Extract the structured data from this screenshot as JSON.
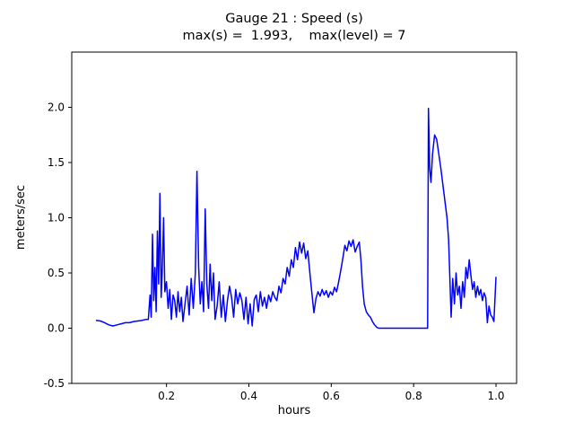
{
  "figure": {
    "background": "#ffffff",
    "text_color": "#000000"
  },
  "chart_data": {
    "type": "line",
    "title": "Gauge 21 : Speed (s)",
    "subtitle": "max(s) =  1.993,    max(level) = 7",
    "xlabel": "hours",
    "ylabel": "meters/sec",
    "xlim": [
      -0.03,
      1.05
    ],
    "ylim": [
      -0.5,
      2.5
    ],
    "x_ticks": [
      0.2,
      0.4,
      0.6,
      0.8,
      1.0
    ],
    "x_tick_labels": [
      "0.2",
      "0.4",
      "0.6",
      "0.8",
      "1.0"
    ],
    "y_ticks": [
      -0.5,
      0.0,
      0.5,
      1.0,
      1.5,
      2.0
    ],
    "y_tick_labels": [
      "-0.5",
      "0.0",
      "0.5",
      "1.0",
      "1.5",
      "2.0"
    ],
    "grid": false,
    "legend": null,
    "max_s": 1.993,
    "max_level": 7,
    "series": [
      {
        "name": "speed",
        "color": "#0000ff",
        "line_width": 1.5,
        "points": [
          [
            0.03,
            0.07
          ],
          [
            0.04,
            0.065
          ],
          [
            0.05,
            0.05
          ],
          [
            0.06,
            0.03
          ],
          [
            0.07,
            0.02
          ],
          [
            0.08,
            0.03
          ],
          [
            0.09,
            0.04
          ],
          [
            0.1,
            0.05
          ],
          [
            0.11,
            0.05
          ],
          [
            0.12,
            0.06
          ],
          [
            0.13,
            0.065
          ],
          [
            0.14,
            0.07
          ],
          [
            0.15,
            0.08
          ],
          [
            0.156,
            0.08
          ],
          [
            0.16,
            0.3
          ],
          [
            0.163,
            0.1
          ],
          [
            0.166,
            0.85
          ],
          [
            0.169,
            0.25
          ],
          [
            0.172,
            0.55
          ],
          [
            0.175,
            0.15
          ],
          [
            0.178,
            0.88
          ],
          [
            0.181,
            0.4
          ],
          [
            0.184,
            1.22
          ],
          [
            0.187,
            0.28
          ],
          [
            0.19,
            0.55
          ],
          [
            0.193,
            1.0
          ],
          [
            0.196,
            0.33
          ],
          [
            0.2,
            0.42
          ],
          [
            0.204,
            0.18
          ],
          [
            0.208,
            0.35
          ],
          [
            0.212,
            0.08
          ],
          [
            0.216,
            0.3
          ],
          [
            0.22,
            0.25
          ],
          [
            0.224,
            0.1
          ],
          [
            0.228,
            0.33
          ],
          [
            0.232,
            0.15
          ],
          [
            0.236,
            0.28
          ],
          [
            0.24,
            0.06
          ],
          [
            0.245,
            0.22
          ],
          [
            0.25,
            0.38
          ],
          [
            0.255,
            0.12
          ],
          [
            0.26,
            0.45
          ],
          [
            0.265,
            0.18
          ],
          [
            0.27,
            0.5
          ],
          [
            0.274,
            1.42
          ],
          [
            0.278,
            0.55
          ],
          [
            0.282,
            0.22
          ],
          [
            0.286,
            0.42
          ],
          [
            0.29,
            0.15
          ],
          [
            0.294,
            1.08
          ],
          [
            0.298,
            0.4
          ],
          [
            0.302,
            0.18
          ],
          [
            0.306,
            0.58
          ],
          [
            0.31,
            0.25
          ],
          [
            0.314,
            0.5
          ],
          [
            0.318,
            0.08
          ],
          [
            0.323,
            0.2
          ],
          [
            0.328,
            0.42
          ],
          [
            0.333,
            0.1
          ],
          [
            0.338,
            0.3
          ],
          [
            0.343,
            0.06
          ],
          [
            0.348,
            0.25
          ],
          [
            0.353,
            0.38
          ],
          [
            0.358,
            0.28
          ],
          [
            0.363,
            0.1
          ],
          [
            0.368,
            0.35
          ],
          [
            0.373,
            0.22
          ],
          [
            0.378,
            0.32
          ],
          [
            0.383,
            0.25
          ],
          [
            0.388,
            0.08
          ],
          [
            0.393,
            0.28
          ],
          [
            0.398,
            0.04
          ],
          [
            0.403,
            0.22
          ],
          [
            0.408,
            0.02
          ],
          [
            0.413,
            0.26
          ],
          [
            0.418,
            0.3
          ],
          [
            0.423,
            0.15
          ],
          [
            0.428,
            0.33
          ],
          [
            0.433,
            0.2
          ],
          [
            0.438,
            0.28
          ],
          [
            0.443,
            0.18
          ],
          [
            0.448,
            0.3
          ],
          [
            0.453,
            0.24
          ],
          [
            0.458,
            0.33
          ],
          [
            0.463,
            0.28
          ],
          [
            0.468,
            0.25
          ],
          [
            0.473,
            0.38
          ],
          [
            0.478,
            0.32
          ],
          [
            0.483,
            0.45
          ],
          [
            0.488,
            0.4
          ],
          [
            0.493,
            0.55
          ],
          [
            0.498,
            0.47
          ],
          [
            0.503,
            0.62
          ],
          [
            0.508,
            0.55
          ],
          [
            0.513,
            0.73
          ],
          [
            0.518,
            0.62
          ],
          [
            0.523,
            0.78
          ],
          [
            0.528,
            0.68
          ],
          [
            0.533,
            0.77
          ],
          [
            0.538,
            0.63
          ],
          [
            0.543,
            0.7
          ],
          [
            0.548,
            0.5
          ],
          [
            0.553,
            0.32
          ],
          [
            0.558,
            0.14
          ],
          [
            0.563,
            0.27
          ],
          [
            0.568,
            0.33
          ],
          [
            0.573,
            0.29
          ],
          [
            0.578,
            0.35
          ],
          [
            0.583,
            0.3
          ],
          [
            0.588,
            0.34
          ],
          [
            0.593,
            0.28
          ],
          [
            0.598,
            0.33
          ],
          [
            0.603,
            0.3
          ],
          [
            0.608,
            0.37
          ],
          [
            0.613,
            0.33
          ],
          [
            0.618,
            0.42
          ],
          [
            0.623,
            0.52
          ],
          [
            0.628,
            0.63
          ],
          [
            0.633,
            0.75
          ],
          [
            0.638,
            0.7
          ],
          [
            0.643,
            0.79
          ],
          [
            0.648,
            0.74
          ],
          [
            0.653,
            0.8
          ],
          [
            0.658,
            0.69
          ],
          [
            0.663,
            0.74
          ],
          [
            0.668,
            0.78
          ],
          [
            0.672,
            0.62
          ],
          [
            0.676,
            0.38
          ],
          [
            0.68,
            0.22
          ],
          [
            0.685,
            0.15
          ],
          [
            0.69,
            0.12
          ],
          [
            0.695,
            0.1
          ],
          [
            0.7,
            0.06
          ],
          [
            0.705,
            0.03
          ],
          [
            0.71,
            0.01
          ],
          [
            0.715,
            0.0
          ],
          [
            0.74,
            0.0
          ],
          [
            0.77,
            0.0
          ],
          [
            0.8,
            0.0
          ],
          [
            0.83,
            0.0
          ],
          [
            0.834,
            0.0
          ],
          [
            0.836,
            1.99
          ],
          [
            0.839,
            1.45
          ],
          [
            0.842,
            1.32
          ],
          [
            0.846,
            1.58
          ],
          [
            0.851,
            1.75
          ],
          [
            0.856,
            1.71
          ],
          [
            0.861,
            1.58
          ],
          [
            0.866,
            1.45
          ],
          [
            0.871,
            1.3
          ],
          [
            0.876,
            1.15
          ],
          [
            0.881,
            1.0
          ],
          [
            0.885,
            0.8
          ],
          [
            0.888,
            0.45
          ],
          [
            0.891,
            0.1
          ],
          [
            0.895,
            0.45
          ],
          [
            0.899,
            0.22
          ],
          [
            0.903,
            0.5
          ],
          [
            0.907,
            0.3
          ],
          [
            0.911,
            0.38
          ],
          [
            0.915,
            0.18
          ],
          [
            0.919,
            0.42
          ],
          [
            0.923,
            0.28
          ],
          [
            0.927,
            0.55
          ],
          [
            0.931,
            0.45
          ],
          [
            0.935,
            0.62
          ],
          [
            0.939,
            0.48
          ],
          [
            0.943,
            0.35
          ],
          [
            0.947,
            0.42
          ],
          [
            0.951,
            0.28
          ],
          [
            0.955,
            0.38
          ],
          [
            0.959,
            0.3
          ],
          [
            0.963,
            0.35
          ],
          [
            0.967,
            0.25
          ],
          [
            0.971,
            0.32
          ],
          [
            0.975,
            0.28
          ],
          [
            0.979,
            0.05
          ],
          [
            0.983,
            0.2
          ],
          [
            0.987,
            0.12
          ],
          [
            0.991,
            0.1
          ],
          [
            0.995,
            0.06
          ],
          [
            1.0,
            0.46
          ]
        ]
      }
    ]
  }
}
